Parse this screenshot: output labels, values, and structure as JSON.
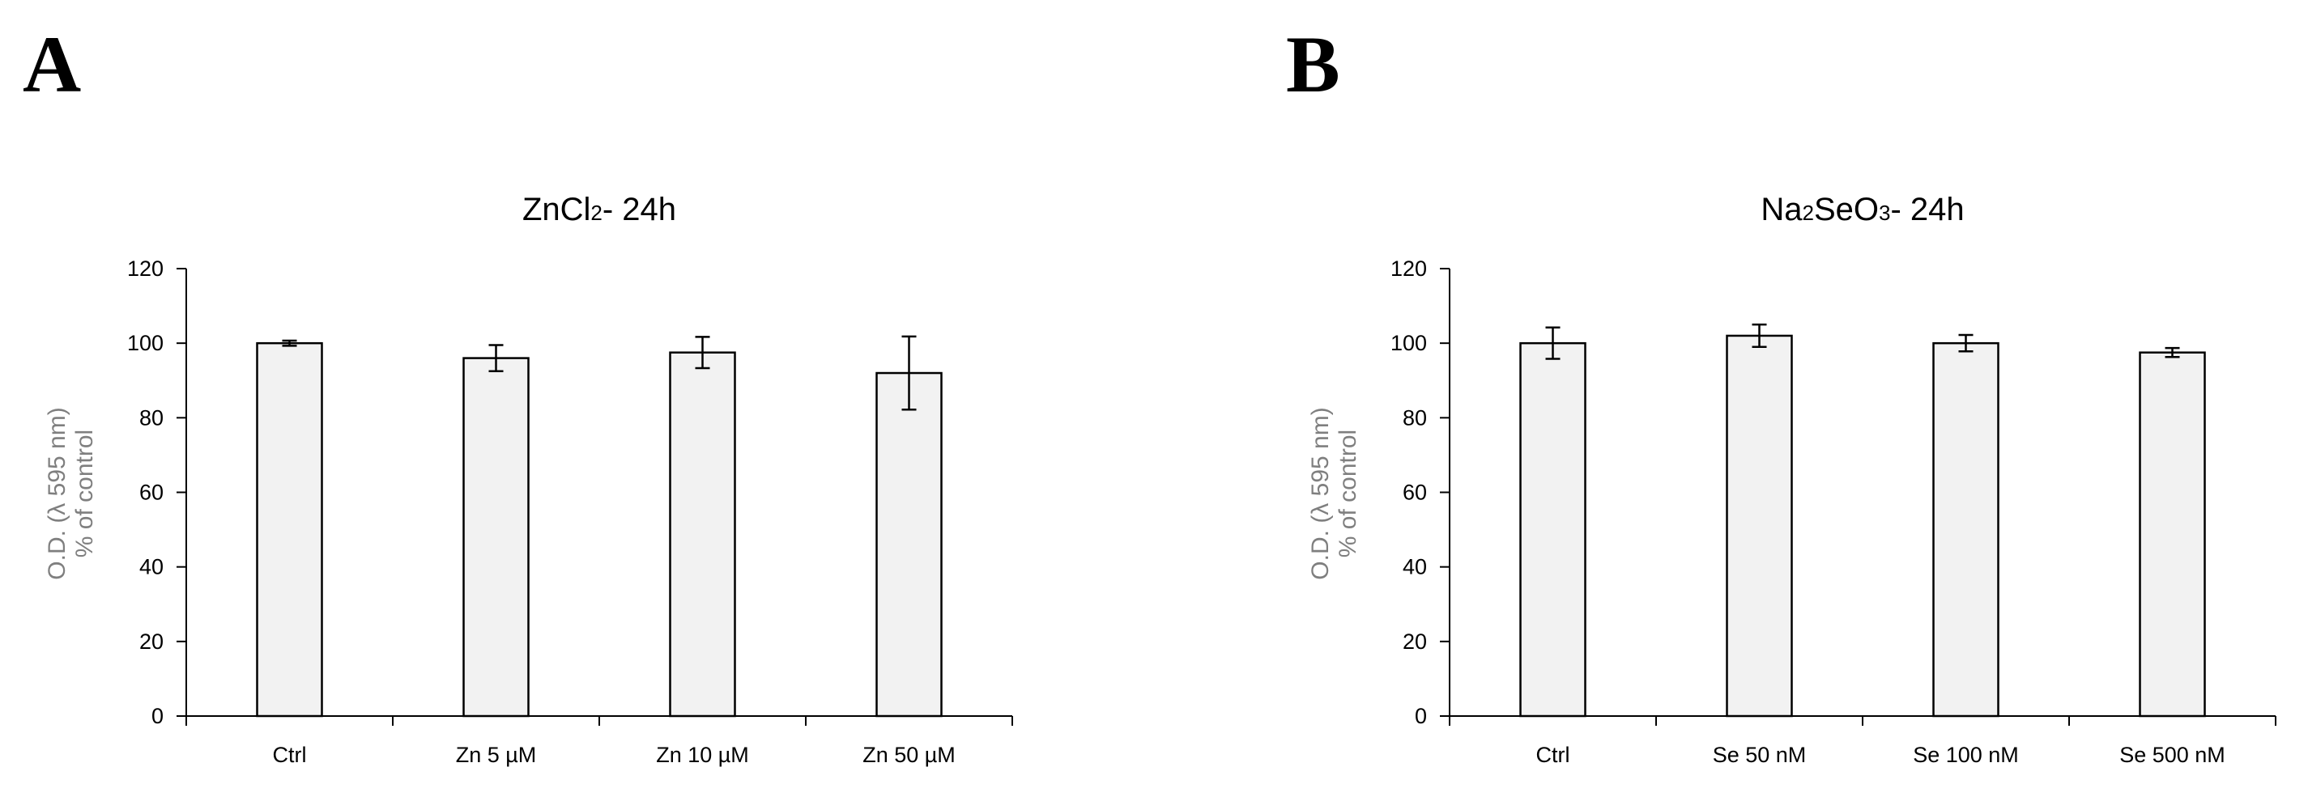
{
  "figure": {
    "panels": [
      {
        "letter": "A"
      },
      {
        "letter": "B"
      }
    ]
  },
  "chart_data": [
    {
      "type": "bar",
      "title": "ZnCl₂- 24h",
      "title_parts": [
        "ZnCl",
        "2",
        "- 24h"
      ],
      "categories": [
        "Ctrl",
        "Zn 5 µM",
        "Zn 10 µM",
        "Zn 50 µM"
      ],
      "values": [
        100,
        96,
        97.5,
        92
      ],
      "errors": [
        0.7,
        3.5,
        4.2,
        9.8
      ],
      "xlabel": "",
      "ylabel_lines": [
        "O.D. (λ 595 nm)",
        "% of control"
      ],
      "ylim": [
        0,
        120
      ],
      "yticks": [
        0,
        20,
        40,
        60,
        80,
        100,
        120
      ],
      "ytick_labels": [
        "0",
        "20",
        "40",
        "60",
        "80",
        "100",
        "120"
      ],
      "grid": false,
      "bar_fill": "#f2f2f2",
      "bar_edge": "#000000",
      "axis_label_color": "#7f7f7f"
    },
    {
      "type": "bar",
      "title": "Na₂SeO₃- 24h",
      "title_parts": [
        "Na",
        "2",
        "SeO",
        "3",
        "- 24h"
      ],
      "categories": [
        "Ctrl",
        "Se 50 nM",
        "Se 100 nM",
        "Se 500 nM"
      ],
      "values": [
        100,
        102,
        100,
        97.5
      ],
      "errors": [
        4.2,
        3,
        2.2,
        1.2
      ],
      "xlabel": "",
      "ylabel_lines": [
        "O.D. (λ 595 nm)",
        "% of control"
      ],
      "ylim": [
        0,
        120
      ],
      "yticks": [
        0,
        20,
        40,
        60,
        80,
        100,
        120
      ],
      "ytick_labels": [
        "0",
        "20",
        "40",
        "60",
        "80",
        "100",
        "120"
      ],
      "grid": false,
      "bar_fill": "#f2f2f2",
      "bar_edge": "#000000",
      "axis_label_color": "#7f7f7f"
    }
  ]
}
